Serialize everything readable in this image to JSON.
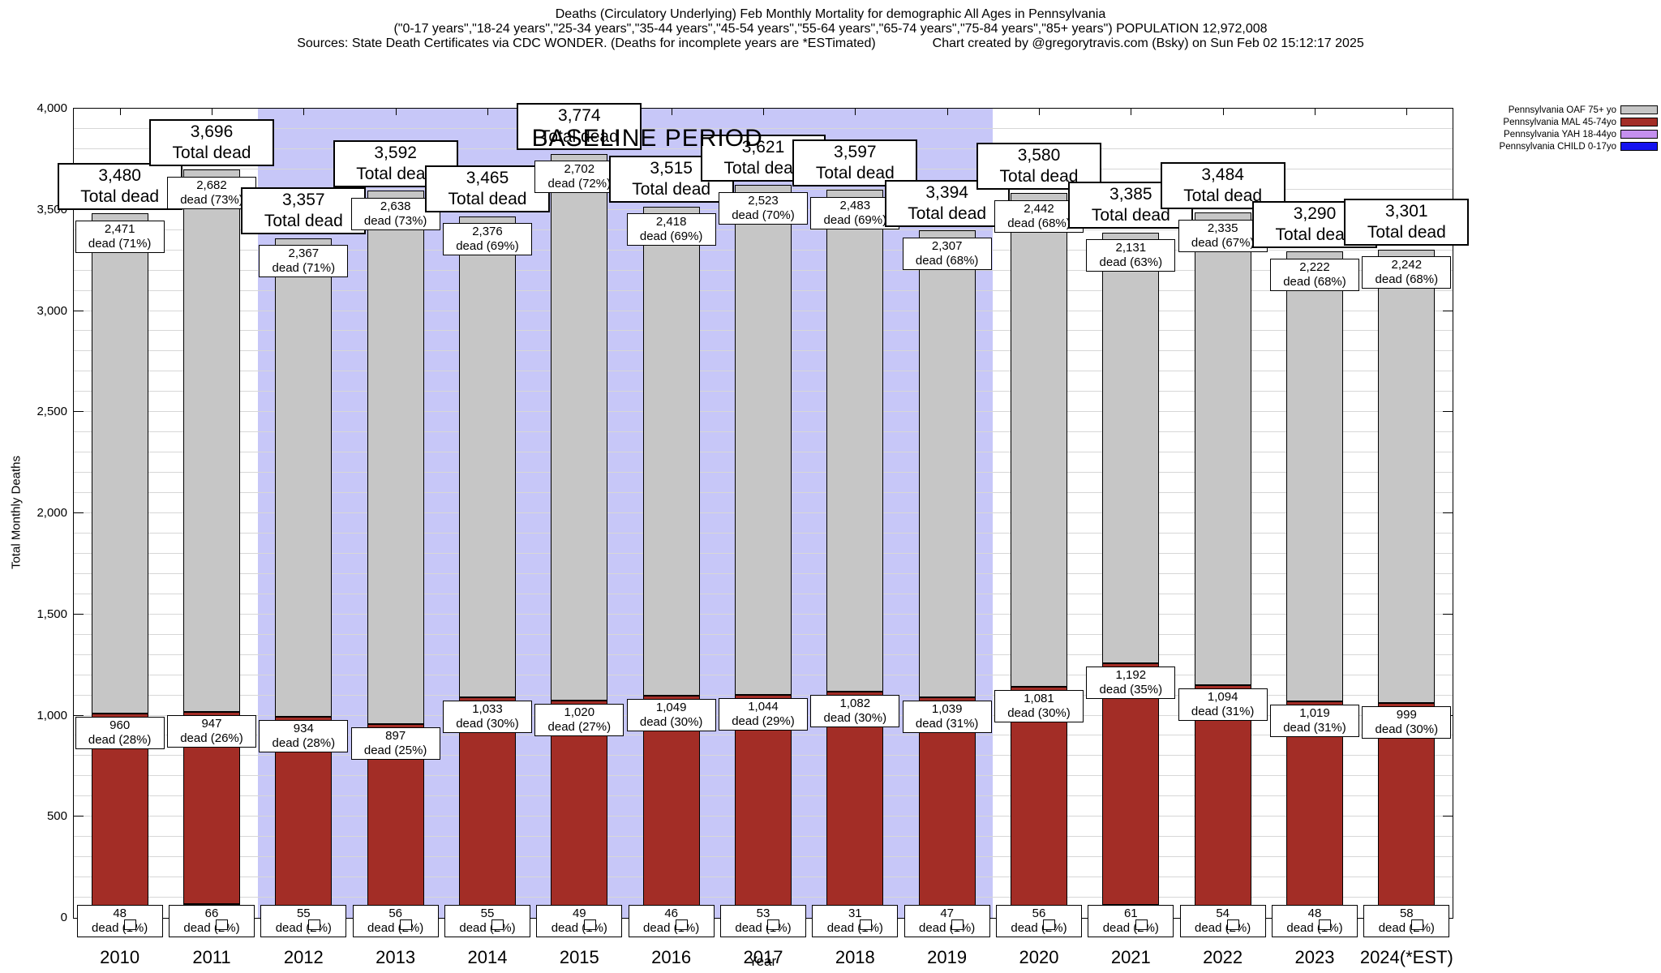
{
  "header": {
    "title_line1": "Deaths (Circulatory Underlying) Feb Monthly Mortality for demographic All Ages in Pennsylvania",
    "title_line2": "(\"0-17 years\",\"18-24 years\",\"25-34 years\",\"35-44 years\",\"45-54 years\",\"55-64 years\",\"65-74 years\",\"75-84 years\",\"85+ years\") POPULATION 12,972,008",
    "sources": "Sources: State Death Certificates via CDC WONDER. (Deaths for incomplete years are *ESTimated)",
    "credit": "Chart created by @gregorytravis.com (Bsky) on Sun Feb 02 15:12:17 2025"
  },
  "legend": {
    "items": [
      {
        "label": "Pennsylvania OAF 75+ yo",
        "color": "#c6c6c6"
      },
      {
        "label": "Pennsylvania MAL 45-74yo",
        "color": "#a32d26"
      },
      {
        "label": "Pennsylvania YAH 18-44yo",
        "color": "#c48fee"
      },
      {
        "label": "Pennsylvania CHILD 0-17yo",
        "color": "#1513f0"
      }
    ]
  },
  "chart_data": {
    "type": "bar",
    "stacked": true,
    "title": "Deaths (Circulatory Underlying) Feb Monthly Mortality for demographic All Ages in Pennsylvania",
    "xlabel": "Year",
    "ylabel": "Total Monthly Deaths",
    "ylim": [
      0,
      4000
    ],
    "ytick_interval": 500,
    "minor_grid_interval": 100,
    "grid": true,
    "legend_position": "top-right-outside",
    "categories": [
      "2010",
      "2011",
      "2012",
      "2013",
      "2014",
      "2015",
      "2016",
      "2017",
      "2018",
      "2019",
      "2020",
      "2021",
      "2022",
      "2023",
      "2024(*EST)"
    ],
    "totals": [
      3480,
      3696,
      3357,
      3592,
      3465,
      3774,
      3515,
      3621,
      3597,
      3394,
      3580,
      3385,
      3484,
      3290,
      3301
    ],
    "total_label_suffix": "Total dead",
    "segment_label_word": "dead",
    "series": [
      {
        "name": "Pennsylvania CHILD 0-17yo",
        "key": "child",
        "color": "#1513f0",
        "values": null,
        "labeled": false,
        "note": "sliver too small to label; height = total minus labeled series"
      },
      {
        "name": "Pennsylvania YAH 18-44yo",
        "key": "yah",
        "color": "#c48fee",
        "labeled": true,
        "values": [
          48,
          66,
          55,
          56,
          55,
          49,
          46,
          53,
          31,
          47,
          56,
          61,
          54,
          48,
          58
        ],
        "pct": [
          1,
          2,
          2,
          2,
          2,
          1,
          1,
          1,
          1,
          1,
          2,
          2,
          2,
          1,
          2
        ]
      },
      {
        "name": "Pennsylvania MAL 45-74yo",
        "key": "mal",
        "color": "#a32d26",
        "labeled": true,
        "values": [
          960,
          947,
          934,
          897,
          1033,
          1020,
          1049,
          1044,
          1082,
          1039,
          1081,
          1192,
          1094,
          1019,
          999
        ],
        "pct": [
          28,
          26,
          28,
          25,
          30,
          27,
          30,
          29,
          30,
          31,
          30,
          35,
          31,
          31,
          30
        ]
      },
      {
        "name": "Pennsylvania OAF 75+ yo",
        "key": "oaf",
        "color": "#c6c6c6",
        "labeled": true,
        "values": [
          2471,
          2682,
          2367,
          2638,
          2376,
          2702,
          2418,
          2523,
          2483,
          2307,
          2442,
          2131,
          2335,
          2222,
          2242
        ],
        "pct": [
          71,
          73,
          71,
          73,
          69,
          72,
          69,
          70,
          69,
          68,
          68,
          63,
          67,
          68,
          68
        ]
      }
    ],
    "baseline_band": {
      "label": "BASELINE PERIOD",
      "from_category": "2012",
      "to_category": "2019",
      "color": "#c7c7f8"
    }
  }
}
